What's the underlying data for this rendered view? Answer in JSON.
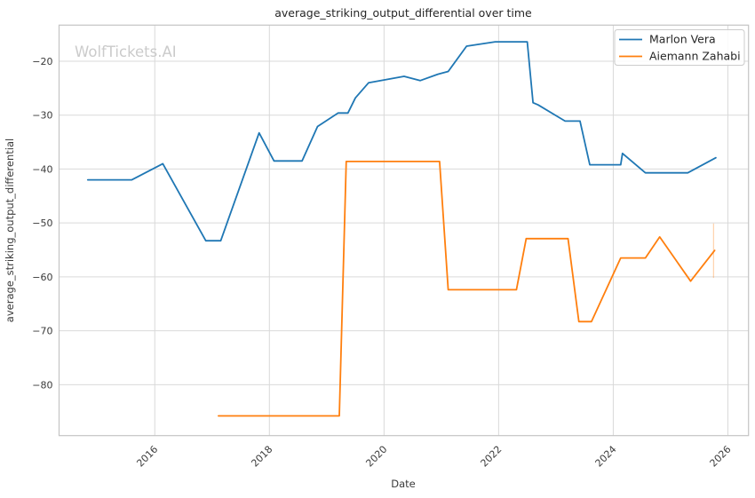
{
  "title": "average_striking_output_differential over time",
  "watermark": "WolfTickets.AI",
  "chart_data": {
    "type": "line",
    "title": "average_striking_output_differential over time",
    "xlabel": "Date",
    "ylabel": "average_striking_output_differential",
    "xlim": [
      2014.33,
      2026.36
    ],
    "ylim": [
      -89.45,
      -13.3
    ],
    "x_ticks": [
      2016,
      2018,
      2020,
      2022,
      2024,
      2026
    ],
    "y_ticks": [
      -20,
      -30,
      -40,
      -50,
      -60,
      -70,
      -80
    ],
    "grid": true,
    "legend_position": "upper right",
    "colors": {
      "grid": "#d9d9d9",
      "spine": "#c4c4c4",
      "text": "#3a3a3a",
      "title_text": "#262626",
      "watermark_text": "#cbcbcb"
    },
    "series": [
      {
        "name": "Marlon Vera",
        "color": "#1f77b4",
        "points": [
          [
            2014.83,
            -42.0
          ],
          [
            2015.6,
            -42.0
          ],
          [
            2016.14,
            -39.0
          ],
          [
            2016.89,
            -53.3
          ],
          [
            2017.15,
            -53.3
          ],
          [
            2017.82,
            -33.3
          ],
          [
            2018.08,
            -38.5
          ],
          [
            2018.57,
            -38.5
          ],
          [
            2018.84,
            -32.1
          ],
          [
            2019.2,
            -29.6
          ],
          [
            2019.37,
            -29.6
          ],
          [
            2019.5,
            -26.8
          ],
          [
            2019.73,
            -24.0
          ],
          [
            2019.88,
            -23.7
          ],
          [
            2020.35,
            -22.8
          ],
          [
            2020.63,
            -23.6
          ],
          [
            2020.94,
            -22.4
          ],
          [
            2021.12,
            -21.9
          ],
          [
            2021.44,
            -17.2
          ],
          [
            2021.94,
            -16.4
          ],
          [
            2022.5,
            -16.4
          ],
          [
            2022.6,
            -27.7
          ],
          [
            2022.69,
            -28.1
          ],
          [
            2023.16,
            -31.1
          ],
          [
            2023.42,
            -31.1
          ],
          [
            2023.59,
            -39.2
          ],
          [
            2024.13,
            -39.2
          ],
          [
            2024.16,
            -37.1
          ],
          [
            2024.56,
            -40.7
          ],
          [
            2025.3,
            -40.7
          ],
          [
            2025.79,
            -37.9
          ]
        ]
      },
      {
        "name": "Aiemann Zahabi",
        "color": "#ff7f0e",
        "points": [
          [
            2017.11,
            -85.8
          ],
          [
            2019.22,
            -85.8
          ],
          [
            2019.34,
            -38.6
          ],
          [
            2020.97,
            -38.6
          ],
          [
            2021.12,
            -62.4
          ],
          [
            2022.31,
            -62.4
          ],
          [
            2022.48,
            -52.9
          ],
          [
            2023.21,
            -52.9
          ],
          [
            2023.4,
            -68.3
          ],
          [
            2023.62,
            -68.3
          ],
          [
            2024.13,
            -56.5
          ],
          [
            2024.56,
            -56.5
          ],
          [
            2024.81,
            -52.6
          ],
          [
            2025.35,
            -60.8
          ],
          [
            2025.77,
            -55.1
          ]
        ]
      }
    ],
    "annotation_line": {
      "x": 2025.75,
      "y_from": -50.1,
      "y_to": -60.2,
      "color": "#ff7f0e",
      "opacity": 0.35
    }
  },
  "legend": [
    {
      "label": "Marlon Vera",
      "color": "#1f77b4"
    },
    {
      "label": "Aiemann Zahabi",
      "color": "#ff7f0e"
    }
  ]
}
